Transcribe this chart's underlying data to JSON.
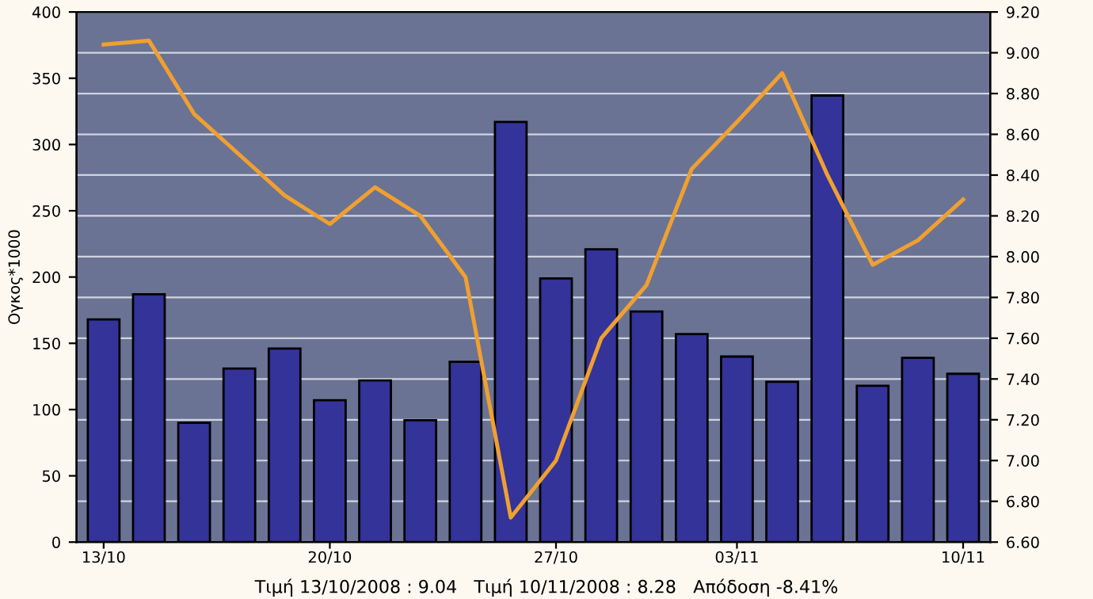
{
  "chart_data": {
    "type": "bar",
    "categories": [
      "13/10",
      null,
      null,
      null,
      null,
      "20/10",
      null,
      null,
      null,
      null,
      "27/10",
      null,
      null,
      null,
      "03/11",
      null,
      null,
      null,
      null,
      "10/11"
    ],
    "series": [
      {
        "color": "#333399",
        "values": [
          168,
          187,
          90,
          131,
          146,
          107,
          122,
          92,
          136,
          317,
          199,
          221,
          174,
          157,
          140,
          121,
          337,
          118,
          139,
          127
        ]
      },
      {
        "type": "line",
        "axis": "y2",
        "color": "#f0a030",
        "values": [
          9.04,
          9.06,
          8.7,
          8.5,
          8.3,
          8.16,
          8.34,
          8.2,
          7.9,
          6.72,
          7.0,
          7.6,
          7.86,
          8.43,
          8.66,
          8.9,
          8.4,
          7.96,
          8.08,
          8.28
        ]
      }
    ],
    "ylabel": "Ογκος*1000",
    "ylim": [
      0,
      400
    ],
    "yticks": [
      0,
      50,
      100,
      150,
      200,
      250,
      300,
      350,
      400
    ],
    "y2lim": [
      6.6,
      9.2
    ],
    "y2ticks": [
      {
        "value": 6.6,
        "label": "6.60"
      },
      {
        "value": 6.8,
        "label": "6.80"
      },
      {
        "value": 7.0,
        "label": "7.00"
      },
      {
        "value": 7.2,
        "label": "7.20"
      },
      {
        "value": 7.4,
        "label": "7.40"
      },
      {
        "value": 7.6,
        "label": "7.60"
      },
      {
        "value": 7.8,
        "label": "7.80"
      },
      {
        "value": 8.0,
        "label": "8.00"
      },
      {
        "value": 8.2,
        "label": "8.20"
      },
      {
        "value": 8.4,
        "label": "8.40"
      },
      {
        "value": 8.6,
        "label": "8.60"
      },
      {
        "value": 8.8,
        "label": "8.80"
      },
      {
        "value": 9.0,
        "label": "9.00"
      },
      {
        "value": 9.2,
        "label": "9.20"
      }
    ],
    "grid": "y2",
    "annotations": [
      "Τιμή 13/10/2008 : 9.04   Τιμή 10/11/2008 : 8.28   Απόδοση -8.41%"
    ]
  }
}
